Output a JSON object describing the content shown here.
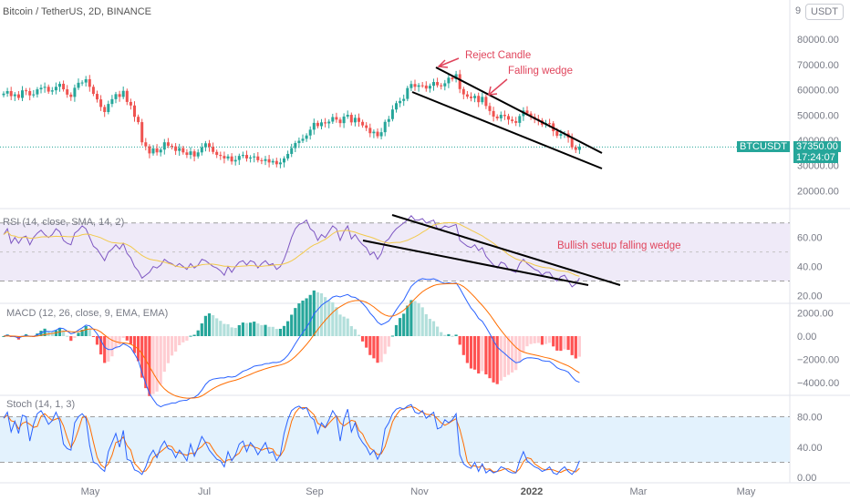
{
  "header": {
    "title": "Bitcoin / TetherUS, 2D, BINANCE",
    "unit": "USDT",
    "corner_tick": "9"
  },
  "ticker": {
    "symbol": "BTCUSDT",
    "price": "37350.00",
    "countdown": "17:24:07"
  },
  "annotations": {
    "reject": "Reject Candle",
    "wedge": "Falling wedge",
    "rsi_note": "Bullish setup falling wedge"
  },
  "colors": {
    "up": "#26a69a",
    "down": "#ef5350",
    "rsi_line": "#7e57c2",
    "rsi_ma": "#f2c94c",
    "macd_line": "#2962ff",
    "signal_line": "#ff6d00",
    "hist_up_strong": "#26a69a",
    "hist_up_weak": "#b2dfdb",
    "hist_down_strong": "#ff5252",
    "hist_down_weak": "#ffcdd2",
    "annotation": "#e0455c",
    "band_rsi": "#efeaf8",
    "band_stoch": "#e3f2fd"
  },
  "chart_data": [
    {
      "type": "candlestick",
      "title": "Bitcoin / TetherUS, 2D, BINANCE",
      "ylabel": "USDT",
      "yticks": [
        20000,
        30000,
        40000,
        50000,
        60000,
        70000,
        80000
      ],
      "ytick_labels": [
        "20000.00",
        "30000.00",
        "40000.00",
        "50000.00",
        "60000.00",
        "70000.00",
        "80000.00"
      ],
      "ylim": [
        14000,
        92000
      ],
      "x_labels": [
        "May",
        "Jul",
        "Sep",
        "Nov",
        "2022",
        "Mar",
        "May"
      ],
      "last_price": 37350,
      "closes": [
        58500,
        59500,
        57500,
        58200,
        56800,
        59800,
        59500,
        57800,
        58200,
        60200,
        60800,
        61200,
        59300,
        59800,
        61200,
        62400,
        60200,
        58100,
        57200,
        60800,
        62800,
        62900,
        64200,
        61200,
        58400,
        56200,
        53200,
        51200,
        54400,
        56300,
        58300,
        57200,
        59600,
        55200,
        53800,
        49300,
        47200,
        39200,
        37600,
        34800,
        36800,
        35200,
        36300,
        39200,
        37800,
        37600,
        35800,
        36900,
        35200,
        34200,
        35600,
        33600,
        35200,
        37200,
        38800,
        37400,
        35400,
        34200,
        33800,
        32800,
        33600,
        31600,
        32200,
        33800,
        34200,
        32800,
        33200,
        33600,
        32100,
        31800,
        32500,
        31200,
        31800,
        30500,
        31200,
        32800,
        34600,
        36900,
        38900,
        39800,
        40600,
        41900,
        44200,
        46900,
        45600,
        47100,
        46700,
        47400,
        49200,
        48200,
        46800,
        49400,
        50100,
        47100,
        48900,
        47300,
        45900,
        44900,
        42800,
        43400,
        41600,
        43200,
        47300,
        48400,
        52200,
        54700,
        55600,
        56400,
        60700,
        62300,
        61200,
        61800,
        61700,
        60500,
        61600,
        63100,
        61800,
        61400,
        62600,
        64800,
        64200,
        66200,
        60300,
        58200,
        57300,
        56700,
        57600,
        55100,
        57200,
        53600,
        51600,
        49400,
        48700,
        50100,
        49600,
        48200,
        47600,
        46900,
        49600,
        51800,
        50600,
        49300,
        48400,
        47900,
        46200,
        46800,
        46700,
        43600,
        41800,
        42500,
        42700,
        41000,
        37200,
        36200,
        37400
      ],
      "annotations": [
        "Reject Candle",
        "Falling wedge"
      ]
    },
    {
      "type": "line",
      "title": "RSI (14, close, SMA, 14, 2)",
      "yticks": [
        20,
        40,
        60
      ],
      "ytick_labels": [
        "20.00",
        "40.00",
        "60.00"
      ],
      "band": [
        30,
        70
      ],
      "series": [
        {
          "name": "RSI",
          "values": [
            62,
            66,
            56,
            60,
            56,
            60,
            61,
            55,
            60,
            63,
            65,
            62,
            60,
            62,
            66,
            64,
            58,
            56,
            55,
            63,
            65,
            68,
            66,
            60,
            54,
            52,
            48,
            44,
            50,
            52,
            55,
            52,
            56,
            49,
            46,
            40,
            37,
            32,
            34,
            36,
            40,
            39,
            41,
            45,
            43,
            42,
            40,
            42,
            40,
            38,
            42,
            39,
            41,
            45,
            44,
            42,
            40,
            39,
            37,
            34,
            40,
            36,
            40,
            43,
            44,
            41,
            44,
            43,
            39,
            42,
            44,
            41,
            42,
            38,
            40,
            45,
            52,
            60,
            66,
            69,
            70,
            72,
            66,
            64,
            58,
            62,
            60,
            64,
            68,
            66,
            58,
            64,
            68,
            59,
            62,
            58,
            55,
            53,
            48,
            50,
            45,
            49,
            57,
            59,
            63,
            66,
            68,
            70,
            72,
            75,
            72,
            72,
            73,
            70,
            71,
            72,
            66,
            66,
            68,
            67,
            68,
            69,
            58,
            56,
            54,
            53,
            55,
            51,
            53,
            47,
            44,
            41,
            39,
            43,
            42,
            38,
            37,
            36,
            42,
            45,
            42,
            40,
            38,
            37,
            34,
            36,
            36,
            32,
            30,
            33,
            34,
            30,
            26,
            28,
            32
          ]
        }
      ],
      "annotations": [
        "Bullish setup falling wedge"
      ]
    },
    {
      "type": "line",
      "title": "MACD (12, 26, close, 9, EMA, EMA)",
      "yticks": [
        -4000,
        -2000,
        0,
        2000
      ],
      "ytick_labels": [
        "−4000.00",
        "−2000.00",
        "0.00",
        "2000.00"
      ],
      "series": [
        {
          "name": "MACD",
          "values": []
        },
        {
          "name": "Signal",
          "values": []
        },
        {
          "name": "Histogram",
          "values": []
        }
      ]
    },
    {
      "type": "line",
      "title": "Stoch (14, 1, 3)",
      "yticks": [
        0,
        40,
        80
      ],
      "ytick_labels": [
        "0.00",
        "40.00",
        "80.00"
      ],
      "band": [
        20,
        80
      ],
      "series": [
        {
          "name": "%K",
          "values": [
            78,
            86,
            60,
            74,
            58,
            82,
            80,
            48,
            70,
            84,
            88,
            80,
            70,
            75,
            86,
            74,
            44,
            38,
            36,
            72,
            80,
            84,
            78,
            42,
            20,
            18,
            12,
            8,
            34,
            46,
            58,
            40,
            62,
            24,
            22,
            10,
            8,
            4,
            14,
            28,
            36,
            26,
            40,
            48,
            38,
            36,
            26,
            36,
            30,
            22,
            44,
            28,
            40,
            54,
            46,
            36,
            30,
            24,
            22,
            14,
            34,
            22,
            30,
            44,
            48,
            34,
            46,
            40,
            30,
            38,
            46,
            32,
            34,
            22,
            30,
            58,
            76,
            88,
            92,
            94,
            90,
            92,
            80,
            76,
            58,
            72,
            66,
            76,
            88,
            80,
            48,
            76,
            90,
            60,
            72,
            54,
            46,
            40,
            30,
            36,
            24,
            34,
            64,
            72,
            84,
            90,
            92,
            90,
            94,
            96,
            86,
            84,
            88,
            78,
            82,
            86,
            64,
            66,
            76,
            72,
            76,
            84,
            30,
            18,
            14,
            12,
            20,
            8,
            18,
            6,
            10,
            6,
            8,
            14,
            12,
            8,
            6,
            6,
            22,
            34,
            22,
            18,
            14,
            12,
            8,
            10,
            14,
            6,
            4,
            10,
            14,
            8,
            4,
            10,
            22
          ]
        }
      ]
    }
  ]
}
